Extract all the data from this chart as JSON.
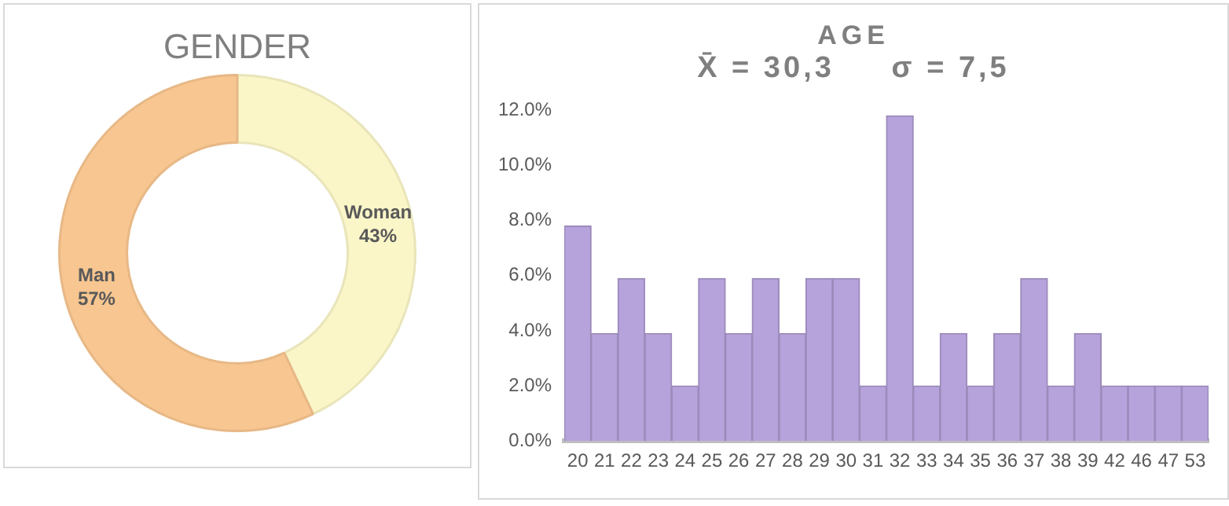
{
  "chart_data": [
    {
      "type": "donut",
      "title": "GENDER",
      "categories": [
        "Woman",
        "Man"
      ],
      "values": [
        43,
        57
      ],
      "value_labels": [
        "43%",
        "57%"
      ],
      "colors": [
        "#faf6c8",
        "#f8c690"
      ],
      "legend": false
    },
    {
      "type": "bar",
      "title": "AGE",
      "subtitle": "X̄ = 30,3     σ = 7,5",
      "categories": [
        "20",
        "21",
        "22",
        "23",
        "24",
        "25",
        "26",
        "27",
        "28",
        "29",
        "30",
        "31",
        "32",
        "33",
        "34",
        "35",
        "36",
        "37",
        "38",
        "39",
        "42",
        "46",
        "47",
        "53"
      ],
      "values": [
        7.8,
        3.9,
        5.9,
        3.9,
        2.0,
        5.9,
        3.9,
        5.9,
        3.9,
        5.9,
        5.9,
        2.0,
        11.8,
        2.0,
        3.9,
        2.0,
        3.9,
        5.9,
        2.0,
        3.9,
        2.0,
        2.0,
        2.0,
        2.0
      ],
      "color": "#b7a3dc",
      "ylim": [
        0,
        12
      ],
      "yticks": [
        {
          "value": 0,
          "label": "0.0%"
        },
        {
          "value": 2,
          "label": "2.0%"
        },
        {
          "value": 4,
          "label": "4.0%"
        },
        {
          "value": 6,
          "label": "6.0%"
        },
        {
          "value": 8,
          "label": "8.0%"
        },
        {
          "value": 10,
          "label": "10.0%"
        },
        {
          "value": 12,
          "label": "12.0%"
        }
      ],
      "grid": false,
      "legend": false
    }
  ]
}
